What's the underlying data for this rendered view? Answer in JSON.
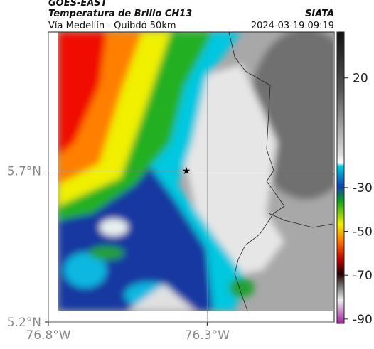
{
  "header": {
    "title": "GOES-EAST",
    "subtitle": "Temperatura de Brillo CH13",
    "route": "Vía Medellín - Quibdó 50km",
    "agency": "SIATA",
    "timestamp": "2024-03-19 09:19"
  },
  "map": {
    "lon_range": [
      -76.8,
      -75.9
    ],
    "lat_range": [
      5.2,
      6.16
    ],
    "lon_ticks": [
      {
        "value": -76.8,
        "label": "76.8°W"
      },
      {
        "value": -76.3,
        "label": "76.3°W"
      }
    ],
    "lat_ticks": [
      {
        "value": 5.2,
        "label": "5.2°N"
      },
      {
        "value": 5.7,
        "label": "5.7°N"
      }
    ]
  },
  "colorbar": {
    "range": [
      -92,
      41
    ],
    "ticks": [
      20,
      -30,
      -50,
      -70,
      -90
    ]
  }
}
